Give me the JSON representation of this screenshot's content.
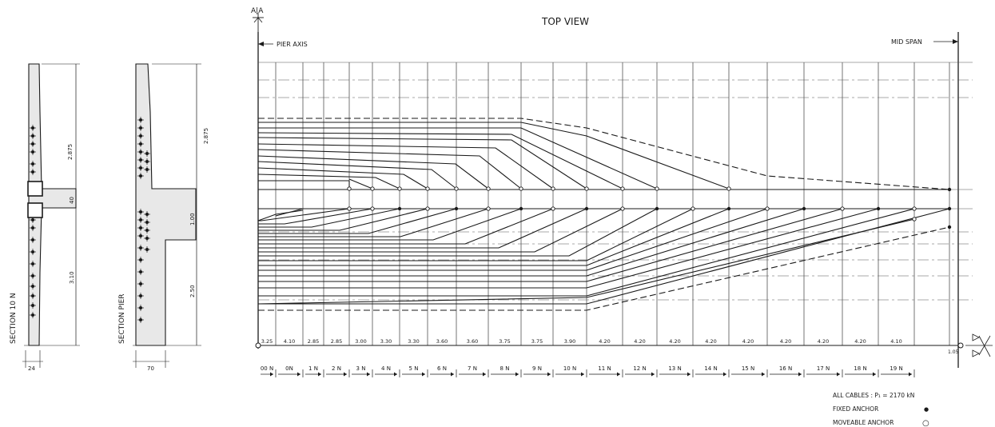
{
  "title": "TOP VIEW",
  "section_marker": "A|A",
  "labels": {
    "pier_axis": "PIER AXIS",
    "mid_span": "MID SPAN",
    "section_10n": "SECTION 10 N",
    "section_pier": "SECTION PIER"
  },
  "section_10n_dims": {
    "upper": "2.875",
    "slab": "40",
    "lower": "3.10",
    "width": "24"
  },
  "section_pier_dims": {
    "upper": "2.875",
    "middle": "1.00",
    "lower": "2.50",
    "width": "70"
  },
  "segment_lengths": [
    "3.25",
    "4.10",
    "2.85",
    "2.85",
    "3.00",
    "3.30",
    "3.30",
    "3.60",
    "3.60",
    "3.75",
    "3.75",
    "3.90",
    "4.20",
    "4.20",
    "4.20",
    "4.20",
    "4.20",
    "4.20",
    "4.20",
    "4.20",
    "4.10"
  ],
  "end_dimension": "1.05",
  "segment_names": [
    "00 N",
    "0N",
    "1 N",
    "2 N",
    "3 N",
    "4 N",
    "5 N",
    "6 N",
    "7 N",
    "8 N",
    "9 N",
    "10 N",
    "11 N",
    "12 N",
    "13 N",
    "14 N",
    "15 N",
    "16 N",
    "17 N",
    "18 N",
    "19 N"
  ],
  "legend": {
    "cables": "ALL CABLES : P₁ = 2170 kN",
    "fixed_anchor": "FIXED ANCHOR",
    "moveable_anchor": "MOVEABLE ANCHOR",
    "fixed_symbol": "●",
    "moveable_symbol": "○"
  }
}
